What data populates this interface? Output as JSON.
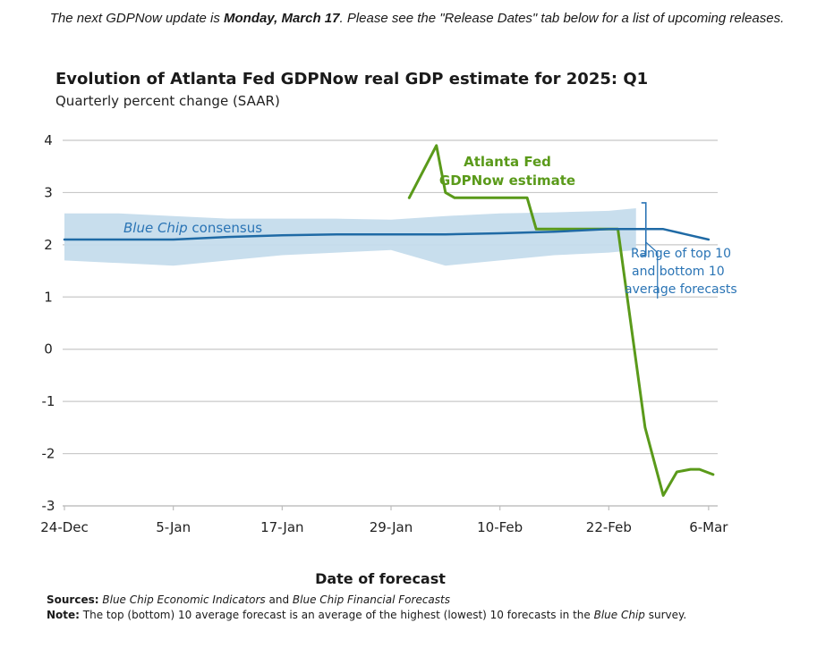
{
  "notice": {
    "prefix": "The next GDPNow update is ",
    "date": "Monday, March 17",
    "suffix": ". Please see the \"Release Dates\" tab below for a list of upcoming releases."
  },
  "chart_data": {
    "type": "line",
    "title": "Evolution of Atlanta Fed GDPNow real GDP estimate for 2025: Q1",
    "subtitle": "Quarterly percent change (SAAR)",
    "xlabel": "Date of forecast",
    "ylabel": "",
    "ylim": [
      -3,
      4
    ],
    "yticks": [
      4,
      3,
      2,
      1,
      0,
      -1,
      -2,
      -3
    ],
    "ytick_labels": [
      "4",
      "3",
      "2",
      "1",
      "0",
      "-1",
      "-2",
      "-3"
    ],
    "xlim": [
      0,
      72
    ],
    "xticks": [
      0,
      12,
      24,
      36,
      48,
      60,
      71
    ],
    "xtick_labels": [
      "24-Dec",
      "5-Jan",
      "17-Jan",
      "29-Jan",
      "10-Feb",
      "22-Feb",
      "6-Mar"
    ],
    "series": [
      {
        "name": "Atlanta Fed GDPNow estimate",
        "color": "#5a9a1a",
        "x": [
          38,
          41,
          42,
          43,
          46,
          51,
          52,
          55,
          57.5,
          59.5,
          61,
          64,
          66,
          67.5,
          69,
          70,
          71.5
        ],
        "y": [
          2.9,
          3.9,
          3.0,
          2.9,
          2.9,
          2.9,
          2.3,
          2.3,
          2.3,
          2.3,
          2.3,
          -1.5,
          -2.8,
          -2.35,
          -2.3,
          -2.3,
          -2.4
        ]
      },
      {
        "name": "Blue Chip consensus",
        "color": "#1f6aa5",
        "x": [
          0,
          6,
          12,
          18,
          24,
          30,
          36,
          42,
          48,
          54,
          60,
          63,
          66,
          71
        ],
        "y": [
          2.1,
          2.1,
          2.1,
          2.15,
          2.18,
          2.2,
          2.2,
          2.2,
          2.22,
          2.25,
          2.3,
          2.3,
          2.3,
          2.1
        ]
      }
    ],
    "band": {
      "name": "Range of top 10 and bottom 10 average forecasts",
      "color": "#c5dcec",
      "x": [
        0,
        6,
        12,
        18,
        24,
        30,
        36,
        42,
        48,
        54,
        60,
        63
      ],
      "upper": [
        2.6,
        2.6,
        2.55,
        2.5,
        2.5,
        2.5,
        2.48,
        2.55,
        2.6,
        2.62,
        2.65,
        2.7
      ],
      "lower": [
        1.7,
        1.65,
        1.6,
        1.7,
        1.8,
        1.85,
        1.9,
        1.6,
        1.7,
        1.8,
        1.85,
        1.9
      ]
    },
    "annotations": {
      "gdpnow_line1": "Atlanta Fed",
      "gdpnow_line2": "GDPNow estimate",
      "bluechip_italic": "Blue Chip",
      "bluechip_rest": " consensus",
      "range_line1": "Range of top 10",
      "range_line2": "and bottom 10",
      "range_line3": "average forecasts"
    }
  },
  "footnotes": {
    "sources_label": "Sources:",
    "source1": "Blue Chip Economic Indicators",
    "and": " and ",
    "source2": "Blue Chip Financial Forecasts",
    "note_label": "Note:",
    "note_text_1": " The top (bottom) 10 average forecast is an average of the highest (lowest) 10 forecasts in the ",
    "note_italic": "Blue Chip",
    "note_text_2": " survey."
  }
}
